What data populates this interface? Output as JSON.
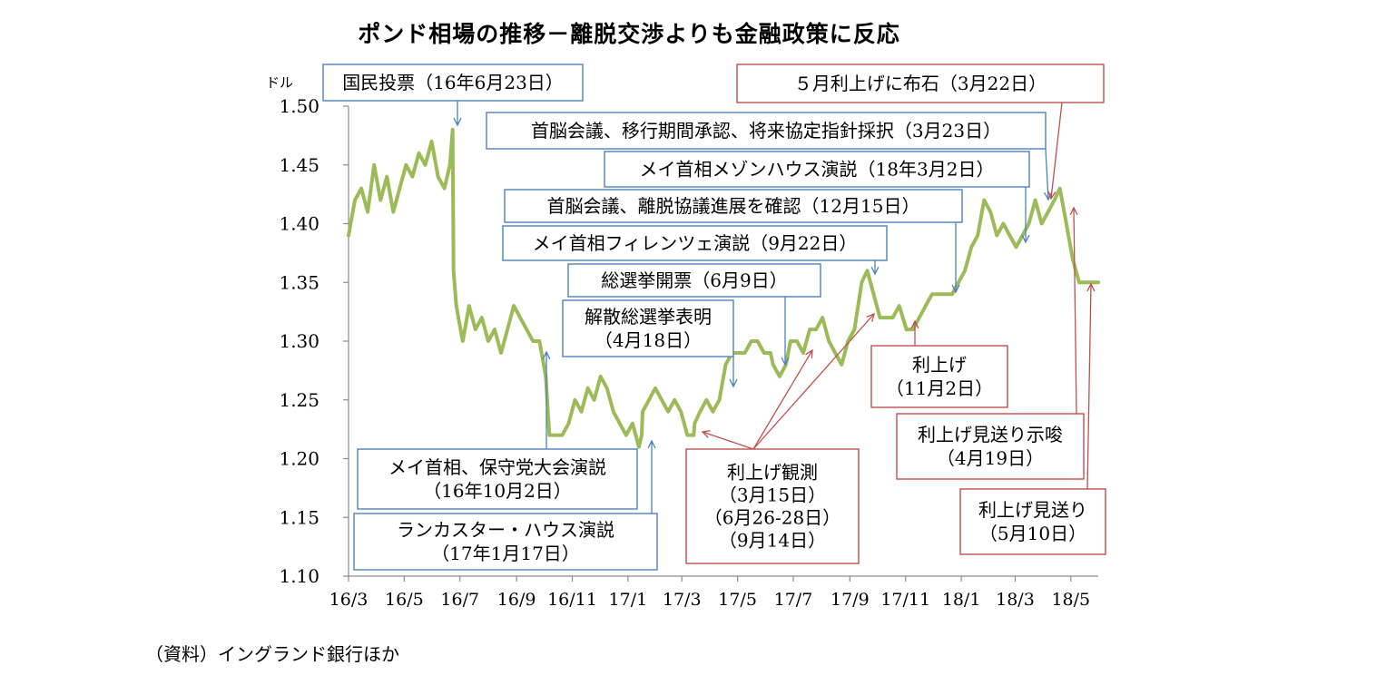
{
  "title": "ポンド相場の推移－離脱交渉よりも金融政策に反応",
  "source": "（資料）イングランド銀行ほか",
  "colors": {
    "line": "#9bbb59",
    "blue": "#4f81bd",
    "red": "#c0504d",
    "axis": "#8c8c8c"
  },
  "chart_data": {
    "type": "line",
    "ylabel": "ドル",
    "ylim": [
      1.1,
      1.5
    ],
    "yticks": [
      1.1,
      1.15,
      1.2,
      1.25,
      1.3,
      1.35,
      1.4,
      1.45,
      1.5
    ],
    "ytick_labels": [
      "1.10",
      "1.15",
      "1.20",
      "1.25",
      "1.30",
      "1.35",
      "1.40",
      "1.45",
      "1.50"
    ],
    "xlim": [
      "2016-03-01",
      "2018-05-31"
    ],
    "xticks": [
      "2016-03-01",
      "2016-05-01",
      "2016-07-01",
      "2016-09-01",
      "2016-11-01",
      "2017-01-01",
      "2017-03-01",
      "2017-05-01",
      "2017-07-01",
      "2017-09-01",
      "2017-11-01",
      "2018-01-01",
      "2018-03-01",
      "2018-05-01"
    ],
    "xtick_labels": [
      "16/3",
      "16/5",
      "16/7",
      "16/9",
      "16/11",
      "17/1",
      "17/3",
      "17/5",
      "17/7",
      "17/9",
      "17/11",
      "18/1",
      "18/3",
      "18/5"
    ],
    "grid": false,
    "series": [
      {
        "x": [
          "2016-03-01",
          "2016-03-08",
          "2016-03-15",
          "2016-03-22",
          "2016-03-29",
          "2016-04-05",
          "2016-04-12",
          "2016-04-19",
          "2016-04-26",
          "2016-05-03",
          "2016-05-10",
          "2016-05-17",
          "2016-05-24",
          "2016-05-31",
          "2016-06-07",
          "2016-06-14",
          "2016-06-20",
          "2016-06-23",
          "2016-06-24",
          "2016-06-27",
          "2016-07-04",
          "2016-07-11",
          "2016-07-18",
          "2016-07-25",
          "2016-08-01",
          "2016-08-08",
          "2016-08-15",
          "2016-08-22",
          "2016-08-29",
          "2016-09-05",
          "2016-09-12",
          "2016-09-19",
          "2016-09-26",
          "2016-10-03",
          "2016-10-07",
          "2016-10-14",
          "2016-10-21",
          "2016-10-28",
          "2016-11-04",
          "2016-11-11",
          "2016-11-18",
          "2016-11-25",
          "2016-12-02",
          "2016-12-09",
          "2016-12-16",
          "2016-12-23",
          "2016-12-30",
          "2017-01-06",
          "2017-01-13",
          "2017-01-16",
          "2017-01-17",
          "2017-01-24",
          "2017-01-31",
          "2017-02-07",
          "2017-02-14",
          "2017-02-21",
          "2017-02-28",
          "2017-03-07",
          "2017-03-14",
          "2017-03-15",
          "2017-03-21",
          "2017-03-28",
          "2017-04-04",
          "2017-04-11",
          "2017-04-18",
          "2017-04-25",
          "2017-05-02",
          "2017-05-09",
          "2017-05-16",
          "2017-05-23",
          "2017-05-30",
          "2017-06-06",
          "2017-06-09",
          "2017-06-16",
          "2017-06-23",
          "2017-06-28",
          "2017-07-05",
          "2017-07-12",
          "2017-07-19",
          "2017-07-26",
          "2017-08-02",
          "2017-08-09",
          "2017-08-16",
          "2017-08-23",
          "2017-08-30",
          "2017-09-06",
          "2017-09-14",
          "2017-09-20",
          "2017-09-27",
          "2017-10-04",
          "2017-10-11",
          "2017-10-18",
          "2017-10-25",
          "2017-11-02",
          "2017-11-09",
          "2017-11-16",
          "2017-11-23",
          "2017-11-30",
          "2017-12-07",
          "2017-12-15",
          "2017-12-22",
          "2017-12-29",
          "2018-01-05",
          "2018-01-12",
          "2018-01-19",
          "2018-01-26",
          "2018-02-02",
          "2018-02-09",
          "2018-02-16",
          "2018-02-23",
          "2018-03-02",
          "2018-03-09",
          "2018-03-16",
          "2018-03-23",
          "2018-03-30",
          "2018-04-06",
          "2018-04-13",
          "2018-04-19",
          "2018-04-26",
          "2018-05-03",
          "2018-05-10",
          "2018-05-17",
          "2018-05-24",
          "2018-05-31"
        ],
        "values": [
          1.39,
          1.42,
          1.43,
          1.41,
          1.45,
          1.42,
          1.44,
          1.41,
          1.43,
          1.45,
          1.44,
          1.46,
          1.45,
          1.47,
          1.44,
          1.43,
          1.45,
          1.48,
          1.36,
          1.33,
          1.3,
          1.33,
          1.31,
          1.32,
          1.3,
          1.31,
          1.29,
          1.31,
          1.33,
          1.32,
          1.31,
          1.3,
          1.3,
          1.27,
          1.22,
          1.22,
          1.22,
          1.23,
          1.25,
          1.24,
          1.26,
          1.25,
          1.27,
          1.26,
          1.24,
          1.23,
          1.22,
          1.23,
          1.21,
          1.22,
          1.24,
          1.25,
          1.26,
          1.25,
          1.24,
          1.25,
          1.24,
          1.22,
          1.22,
          1.23,
          1.24,
          1.25,
          1.24,
          1.25,
          1.28,
          1.29,
          1.29,
          1.29,
          1.3,
          1.3,
          1.29,
          1.29,
          1.28,
          1.27,
          1.28,
          1.3,
          1.3,
          1.29,
          1.31,
          1.31,
          1.32,
          1.3,
          1.29,
          1.28,
          1.3,
          1.31,
          1.35,
          1.36,
          1.34,
          1.32,
          1.32,
          1.32,
          1.33,
          1.31,
          1.31,
          1.32,
          1.33,
          1.34,
          1.34,
          1.34,
          1.34,
          1.35,
          1.36,
          1.38,
          1.39,
          1.42,
          1.41,
          1.39,
          1.4,
          1.39,
          1.38,
          1.39,
          1.4,
          1.42,
          1.4,
          1.41,
          1.42,
          1.43,
          1.4,
          1.37,
          1.35,
          1.35,
          1.35,
          1.35
        ]
      }
    ],
    "annotations": [
      {
        "id": "referendum",
        "lines": [
          "国民投票（16年6月23日）"
        ],
        "kind": "blue",
        "x": "2016-06-23"
      },
      {
        "id": "may-party-conference",
        "lines": [
          "メイ首相、保守党大会演説",
          "（16年10月2日）"
        ],
        "kind": "blue",
        "x": "2016-10-02"
      },
      {
        "id": "lancaster-house",
        "lines": [
          "ランカスター・ハウス演説",
          "（17年1月17日）"
        ],
        "kind": "blue",
        "x": "2017-01-17"
      },
      {
        "id": "snap-election",
        "lines": [
          "解散総選挙表明",
          "（4月18日）"
        ],
        "kind": "blue",
        "x": "2017-04-18"
      },
      {
        "id": "election-count",
        "lines": [
          "総選挙開票（6月9日）"
        ],
        "kind": "blue",
        "x": "2017-06-09"
      },
      {
        "id": "florence-speech",
        "lines": [
          "メイ首相フィレンツェ演説（9月22日）"
        ],
        "kind": "blue",
        "x": "2017-09-22"
      },
      {
        "id": "summit-progress",
        "lines": [
          "首脳会議、離脱協議進展を確認（12月15日）"
        ],
        "kind": "blue",
        "x": "2017-12-15"
      },
      {
        "id": "mansion-house",
        "lines": [
          "メイ首相メゾンハウス演説（18年3月2日）"
        ],
        "kind": "blue",
        "x": "2018-03-02"
      },
      {
        "id": "summit-transition",
        "lines": [
          "首脳会議、移行期間承認、将来協定指針採択（3月23日）"
        ],
        "kind": "blue",
        "x": "2018-03-23"
      },
      {
        "id": "may-hike-hint",
        "lines": [
          "５月利上げに布石（3月22日）"
        ],
        "kind": "red",
        "x": "2018-03-22"
      },
      {
        "id": "hike-speculation",
        "lines": [
          "利上げ観測",
          "（3月15日）",
          "（6月26‐28日）",
          "（9月14日）"
        ],
        "kind": "red",
        "x": [
          "2017-03-15",
          "2017-06-28",
          "2017-09-14"
        ]
      },
      {
        "id": "rate-hike",
        "lines": [
          "利上げ",
          "（11月2日）"
        ],
        "kind": "red",
        "x": "2017-11-02"
      },
      {
        "id": "hike-delay-hint",
        "lines": [
          "利上げ見送り示唆",
          "（4月19日）"
        ],
        "kind": "red",
        "x": "2018-04-19"
      },
      {
        "id": "hike-delayed",
        "lines": [
          "利上げ見送り",
          "（5月10日）"
        ],
        "kind": "red",
        "x": "2018-05-10"
      }
    ]
  }
}
